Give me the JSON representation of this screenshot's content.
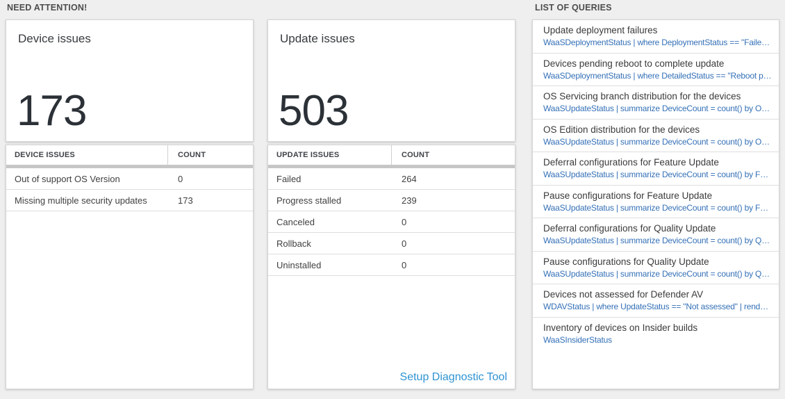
{
  "sections": {
    "need_attention_label": "NEED ATTENTION!",
    "list_of_queries_label": "LIST OF QUERIES"
  },
  "device_card": {
    "title": "Device issues",
    "big_number": "173"
  },
  "device_table": {
    "headers": {
      "issues": "DEVICE ISSUES",
      "count": "COUNT"
    },
    "rows": [
      {
        "label": "Out of support OS Version",
        "count": "0"
      },
      {
        "label": "Missing multiple security updates",
        "count": "173"
      }
    ]
  },
  "update_card": {
    "title": "Update issues",
    "big_number": "503"
  },
  "update_table": {
    "headers": {
      "issues": "UPDATE ISSUES",
      "count": "COUNT"
    },
    "rows": [
      {
        "label": "Failed",
        "count": "264"
      },
      {
        "label": "Progress stalled",
        "count": "239"
      },
      {
        "label": "Canceled",
        "count": "0"
      },
      {
        "label": "Rollback",
        "count": "0"
      },
      {
        "label": "Uninstalled",
        "count": "0"
      }
    ]
  },
  "diagnostic_link_label": "Setup Diagnostic Tool",
  "query_list": {
    "items": [
      {
        "title": "Update deployment failures",
        "query": "WaaSDeploymentStatus | where DeploymentStatus == \"Failed\" |..."
      },
      {
        "title": "Devices pending reboot to complete update",
        "query": "WaaSDeploymentStatus | where DetailedStatus == \"Reboot pend..."
      },
      {
        "title": "OS Servicing branch distribution for the devices",
        "query": "WaaSUpdateStatus | summarize DeviceCount = count() by OSSer..."
      },
      {
        "title": "OS Edition distribution for the devices",
        "query": "WaaSUpdateStatus | summarize DeviceCount = count() by OSEdit..."
      },
      {
        "title": "Deferral configurations for Feature Update",
        "query": "WaaSUpdateStatus | summarize DeviceCount = count() by Featur..."
      },
      {
        "title": "Pause configurations for Feature Update",
        "query": "WaaSUpdateStatus | summarize DeviceCount = count() by Featur..."
      },
      {
        "title": "Deferral configurations for Quality Update",
        "query": "WaaSUpdateStatus | summarize DeviceCount = count() by Qualit..."
      },
      {
        "title": "Pause configurations for Quality Update",
        "query": "WaaSUpdateStatus | summarize DeviceCount = count() by Qualit..."
      },
      {
        "title": "Devices not assessed for Defender AV",
        "query": "WDAVStatus | where UpdateStatus == \"Not assessed\" | render ta..."
      },
      {
        "title": "Inventory of devices on Insider builds",
        "query": "WaaSInsiderStatus"
      }
    ]
  },
  "colors": {
    "query_link_blue": "#3470b7",
    "diagnostic_link_blue": "#2e93d2",
    "big_number_color": "#2b3137",
    "page_background": "#efefef"
  }
}
